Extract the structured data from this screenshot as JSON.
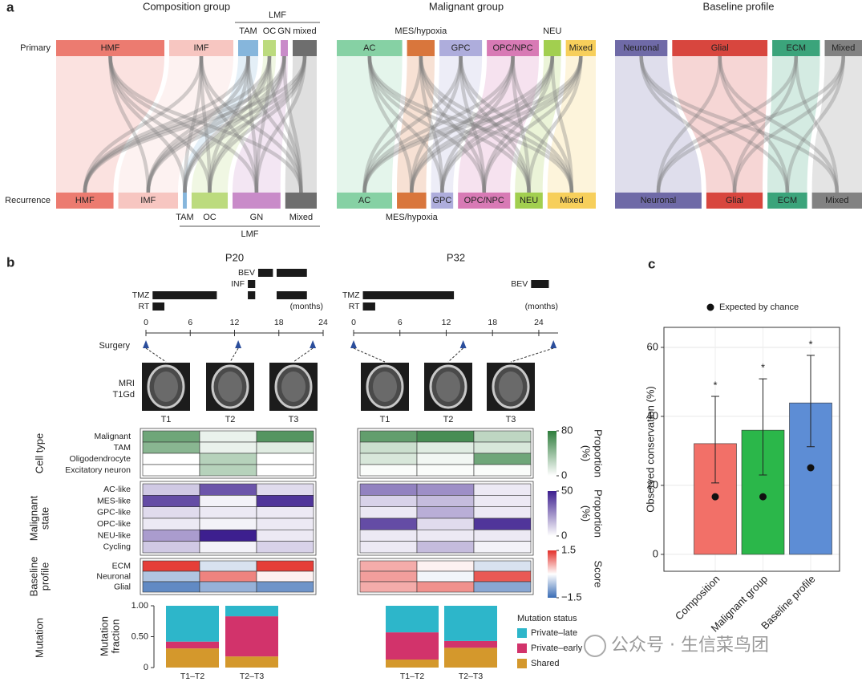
{
  "panel_labels": [
    "a",
    "b",
    "c"
  ],
  "watermark": "公众号 · 生信菜鸟团",
  "chart_data": [
    {
      "type": "alluvial",
      "title": "Composition group",
      "row_labels": [
        "Primary",
        "Recurrence"
      ],
      "top": [
        {
          "label": "HMF",
          "value": 135,
          "color": "#ec7b70"
        },
        {
          "label": "IMF",
          "value": 80,
          "color": "#f7c6c1"
        },
        {
          "group": "LMF",
          "nodes": [
            {
              "label": "TAM",
              "value": 25,
              "color": "#86b6dc"
            },
            {
              "label": "OC",
              "value": 16,
              "color": "#bcdb7e"
            },
            {
              "label": "GN",
              "value": 9,
              "color": "#c98bc9"
            },
            {
              "label": "mixed",
              "value": 30,
              "color": "#6e6e6e"
            }
          ]
        }
      ],
      "bottom": [
        {
          "label": "HMF",
          "value": 73,
          "color": "#ec7b70"
        },
        {
          "label": "IMF",
          "value": 76,
          "color": "#f7c6c1"
        },
        {
          "group": "LMF",
          "nodes": [
            {
              "label": "TAM",
              "value": 5,
              "color": "#86b6dc"
            },
            {
              "label": "OC",
              "value": 46,
              "color": "#bcdb7e"
            },
            {
              "label": "GN",
              "value": 61,
              "color": "#c98bc9"
            },
            {
              "label": "Mixed",
              "value": 40,
              "color": "#6e6e6e"
            }
          ]
        }
      ]
    },
    {
      "type": "alluvial",
      "title": "Malignant group",
      "top": [
        {
          "label": "AC",
          "value": 83,
          "color": "#86d1a4"
        },
        {
          "label": "MES/hypoxia",
          "value": 35,
          "color": "#d9763c"
        },
        {
          "label": "GPC",
          "value": 54,
          "color": "#aeaddc"
        },
        {
          "label": "OPC/NPC",
          "value": 66,
          "color": "#d87ab5"
        },
        {
          "label": "NEU",
          "value": 22,
          "color": "#a2cf4f"
        },
        {
          "label": "Mixed",
          "value": 38,
          "color": "#f7cf5b"
        }
      ],
      "bottom": [
        {
          "label": "AC",
          "value": 70,
          "color": "#86d1a4"
        },
        {
          "label": "MES/hypoxia",
          "value": 37,
          "color": "#d9763c"
        },
        {
          "label": "GPC",
          "value": 28,
          "color": "#aeaddc"
        },
        {
          "label": "OPC/NPC",
          "value": 66,
          "color": "#d87ab5"
        },
        {
          "label": "NEU",
          "value": 35,
          "color": "#a2cf4f"
        },
        {
          "label": "Mixed",
          "value": 61,
          "color": "#f7cf5b"
        }
      ]
    },
    {
      "type": "alluvial",
      "title": "Baseline profile",
      "top": [
        {
          "label": "Neuronal",
          "value": 66,
          "color": "#6f6aa7"
        },
        {
          "label": "Glial",
          "value": 120,
          "color": "#d8463e"
        },
        {
          "label": "ECM",
          "value": 60,
          "color": "#3ba47b"
        },
        {
          "label": "Mixed",
          "value": 47,
          "color": "#828282"
        }
      ],
      "bottom": [
        {
          "label": "Neuronal",
          "value": 109,
          "color": "#6f6aa7"
        },
        {
          "label": "Glial",
          "value": 71,
          "color": "#d8463e"
        },
        {
          "label": "ECM",
          "value": 50,
          "color": "#3ba47b"
        },
        {
          "label": "Mixed",
          "value": 63,
          "color": "#828282"
        }
      ]
    },
    {
      "type": "timeline",
      "surgery_label": "Surgery",
      "imaging_label_lines": [
        "MRI",
        "T1Gd"
      ],
      "patients": [
        {
          "title": "P20",
          "xlabel": "(months)",
          "xlim": [
            0,
            24
          ],
          "xticks": [
            0,
            6,
            12,
            18,
            24
          ],
          "treatments": [
            {
              "name": "BEV",
              "periods": [
                [
                  15.2,
                  17.2
                ],
                [
                  17.7,
                  21.8
                ]
              ]
            },
            {
              "name": "INF",
              "periods": [
                [
                  13.8,
                  14.8
                ]
              ]
            },
            {
              "name": "TMZ",
              "periods": [
                [
                  0.9,
                  9.6
                ],
                [
                  13.8,
                  14.8
                ],
                [
                  17.7,
                  21.8
                ]
              ]
            },
            {
              "name": "RT",
              "periods": [
                [
                  0.9,
                  2.5
                ]
              ]
            }
          ],
          "surgeries": [
            0,
            12.5,
            22.6
          ],
          "samples": [
            "T1",
            "T2",
            "T3"
          ]
        },
        {
          "title": "P32",
          "xlabel": "(months)",
          "xlim": [
            0,
            26.5
          ],
          "xticks": [
            0,
            6,
            12,
            18,
            24
          ],
          "treatments": [
            {
              "name": "BEV",
              "periods": [
                [
                  23,
                  25.3
                ]
              ]
            },
            {
              "name": "TMZ",
              "periods": [
                [
                  1.2,
                  13
                ]
              ]
            },
            {
              "name": "RT",
              "periods": [
                [
                  1.2,
                  2.8
                ]
              ]
            }
          ],
          "surgeries": [
            0,
            14.2,
            25.9
          ],
          "samples": [
            "T1",
            "T2",
            "T3"
          ]
        }
      ]
    },
    {
      "type": "heatmap",
      "groups": [
        {
          "label_lines": [
            "Cell type"
          ],
          "rows": [
            "Malignant",
            "TAM",
            "Oligodendrocyte",
            "Excitatory neuron"
          ],
          "scale": {
            "title_lines": [
              "Proportion",
              "(%)"
            ],
            "colors": [
              "#ffffff",
              "#2e7d3c"
            ],
            "lim": [
              0,
              80
            ],
            "ticks": [
              0,
              80
            ]
          },
          "values": [
            [
              [
                55,
                8,
                65
              ],
              [
                45,
                8,
                12
              ],
              [
                0,
                28,
                0
              ],
              [
                0,
                28,
                0
              ]
            ],
            [
              [
                60,
                70,
                25
              ],
              [
                20,
                12,
                15
              ],
              [
                15,
                5,
                55
              ],
              [
                2,
                2,
                2
              ]
            ]
          ]
        },
        {
          "label_lines": [
            "Malignant",
            "state"
          ],
          "rows": [
            "AC-like",
            "MES-like",
            "GPC-like",
            "OPC-like",
            "NEU-like",
            "Cycling"
          ],
          "scale": {
            "title_lines": [
              "Proportion",
              "(%)"
            ],
            "colors": [
              "#ffffff",
              "#3d1f8f"
            ],
            "lim": [
              0,
              50
            ],
            "ticks": [
              0,
              50
            ]
          },
          "values": [
            [
              [
                12,
                38,
                8
              ],
              [
                40,
                3,
                45
              ],
              [
                8,
                5,
                5
              ],
              [
                5,
                3,
                5
              ],
              [
                22,
                50,
                5
              ],
              [
                12,
                3,
                10
              ]
            ],
            [
              [
                28,
                25,
                5
              ],
              [
                10,
                15,
                5
              ],
              [
                5,
                18,
                5
              ],
              [
                40,
                8,
                45
              ],
              [
                5,
                5,
                5
              ],
              [
                5,
                15,
                3
              ]
            ]
          ]
        },
        {
          "label_lines": [
            "Baseline",
            "profile"
          ],
          "rows": [
            "ECM",
            "Neuronal",
            "Glial"
          ],
          "scale": {
            "title_lines": [
              "Score"
            ],
            "colors": [
              "#3a6db5",
              "#ffffff",
              "#e3302a"
            ],
            "lim": [
              -1.5,
              1.5
            ],
            "ticks": [
              {
                "value": -1.5,
                "label": "−1.5"
              },
              1.5
            ]
          },
          "values": [
            [
              [
                1.4,
                -0.3,
                1.4
              ],
              [
                -0.6,
                0.9,
                0.1
              ],
              [
                -1.2,
                -0.8,
                -1.1
              ]
            ],
            [
              [
                0.6,
                0.1,
                -0.3
              ],
              [
                0.7,
                -0.1,
                1.2
              ],
              [
                0.6,
                0.8,
                -0.9
              ]
            ]
          ]
        }
      ]
    },
    {
      "type": "stacked_bar",
      "group_label_lines": [
        "Mutation"
      ],
      "ylabel_lines": [
        "Mutation",
        "fraction"
      ],
      "legend_title": "Mutation status",
      "categories": [
        "T1–T2",
        "T2–T3",
        "T1–T2",
        "T2–T3"
      ],
      "ylim": [
        0,
        1
      ],
      "yticks": [
        0,
        {
          "value": 0.5,
          "label": "0.50"
        },
        {
          "value": 1,
          "label": "1.00"
        }
      ],
      "series": [
        {
          "name": "Shared",
          "color": "#d4982c",
          "values": [
            0.31,
            0.18,
            0.13,
            0.32
          ]
        },
        {
          "name": "Private–early",
          "color": "#d2336b",
          "values": [
            0.11,
            0.65,
            0.44,
            0.11
          ]
        },
        {
          "name": "Private–late",
          "color": "#2db6ca",
          "values": [
            0.58,
            0.17,
            0.43,
            0.57
          ]
        }
      ]
    },
    {
      "type": "bar",
      "categories": [
        "Composition",
        "Malignant group",
        "Baseline profile"
      ],
      "values": [
        32.1,
        36,
        43.9
      ],
      "colors": [
        "#f27068",
        "#2bb74a",
        "#5d8dd5"
      ],
      "error_low": [
        20.7,
        23,
        31.2
      ],
      "error_high": [
        45.8,
        50.9,
        57.7
      ],
      "annotations": [
        "*",
        "*",
        "*"
      ],
      "expected": {
        "name": "Expected by chance",
        "values": [
          16.7,
          16.7,
          25.1
        ]
      },
      "ylabel": "Observed conservation (%)",
      "ylim": [
        -4.9,
        65.8
      ],
      "yticks": [
        0,
        20,
        40,
        60
      ],
      "grid": true
    }
  ]
}
